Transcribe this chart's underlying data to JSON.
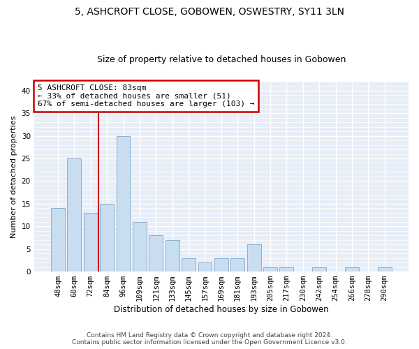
{
  "title_line1": "5, ASHCROFT CLOSE, GOBOWEN, OSWESTRY, SY11 3LN",
  "title_line2": "Size of property relative to detached houses in Gobowen",
  "xlabel": "Distribution of detached houses by size in Gobowen",
  "ylabel": "Number of detached properties",
  "bar_labels": [
    "48sqm",
    "60sqm",
    "72sqm",
    "84sqm",
    "96sqm",
    "109sqm",
    "121sqm",
    "133sqm",
    "145sqm",
    "157sqm",
    "169sqm",
    "181sqm",
    "193sqm",
    "205sqm",
    "217sqm",
    "230sqm",
    "242sqm",
    "254sqm",
    "266sqm",
    "278sqm",
    "290sqm"
  ],
  "bar_values": [
    14,
    25,
    13,
    15,
    30,
    11,
    8,
    7,
    3,
    2,
    3,
    3,
    6,
    1,
    1,
    0,
    1,
    0,
    1,
    0,
    1
  ],
  "bar_color": "#c9ddf0",
  "bar_edge_color": "#8ab0d0",
  "red_line_x": 2.5,
  "annotation_line1": "5 ASHCROFT CLOSE: 83sqm",
  "annotation_line2": "← 33% of detached houses are smaller (51)",
  "annotation_line3": "67% of semi-detached houses are larger (103) →",
  "annotation_box_color": "white",
  "annotation_box_edge_color": "#cc0000",
  "ylim": [
    0,
    42
  ],
  "yticks": [
    0,
    5,
    10,
    15,
    20,
    25,
    30,
    35,
    40
  ],
  "footer_line1": "Contains HM Land Registry data © Crown copyright and database right 2024.",
  "footer_line2": "Contains public sector information licensed under the Open Government Licence v3.0.",
  "background_color": "#ffffff",
  "plot_bg_color": "#e8eef8",
  "grid_color": "#ffffff",
  "title_fontsize": 10,
  "subtitle_fontsize": 9,
  "tick_fontsize": 7.5,
  "ylabel_fontsize": 8,
  "xlabel_fontsize": 8.5,
  "annotation_fontsize": 8
}
